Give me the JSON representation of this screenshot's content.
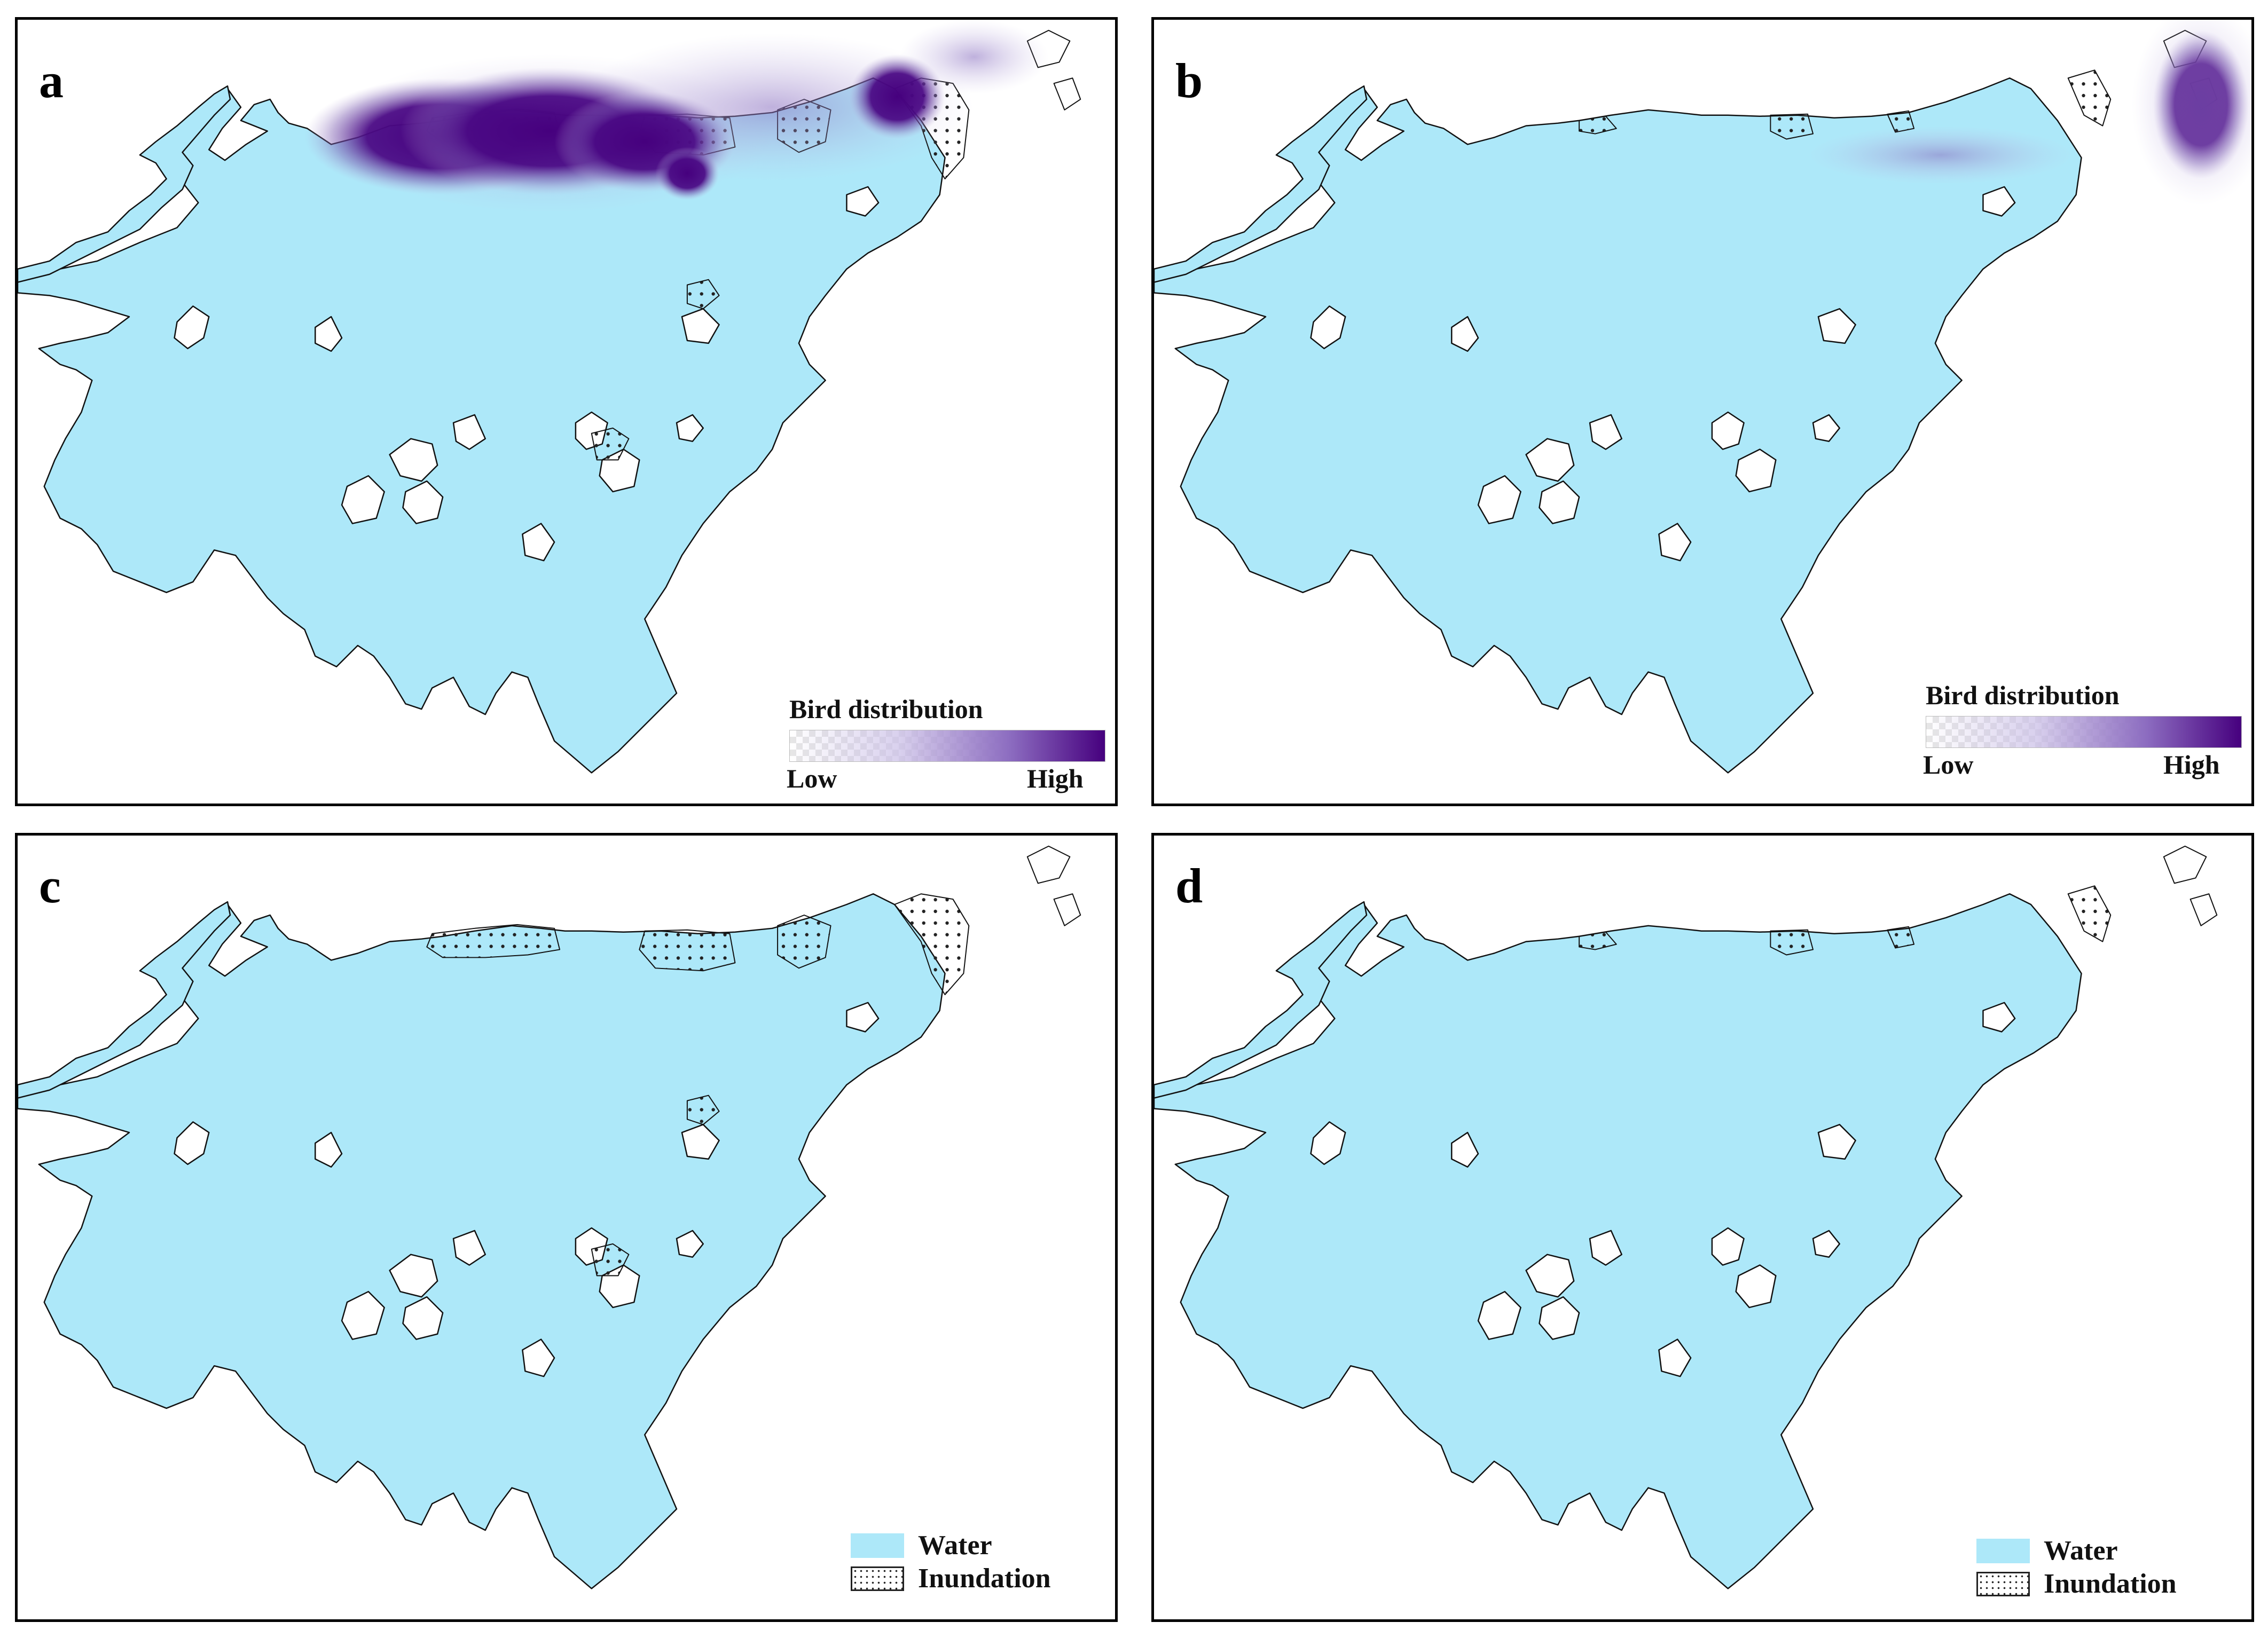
{
  "colors": {
    "water": "#ade8f9",
    "outline": "#111111",
    "inundation_dot": "#222222",
    "bird_low": "#ffffff",
    "bird_high": "#46007e"
  },
  "panels": [
    {
      "letter": "a",
      "legend_type": "bird",
      "legend_title": "Bird distribution",
      "low_label": "Low",
      "high_label": "High",
      "inundation_level": "high",
      "bird_hotspots": [
        "north-shore central",
        "north-east bay"
      ]
    },
    {
      "letter": "b",
      "legend_type": "bird",
      "legend_title": "Bird distribution",
      "low_label": "Low",
      "high_label": "High",
      "inundation_level": "low",
      "bird_hotspots": [
        "north-east corner",
        "north shore (weak)"
      ]
    },
    {
      "letter": "c",
      "legend_type": "cover",
      "water_label": "Water",
      "inundation_label": "Inundation",
      "inundation_level": "high"
    },
    {
      "letter": "d",
      "legend_type": "cover",
      "water_label": "Water",
      "inundation_label": "Inundation",
      "inundation_level": "low"
    }
  ]
}
